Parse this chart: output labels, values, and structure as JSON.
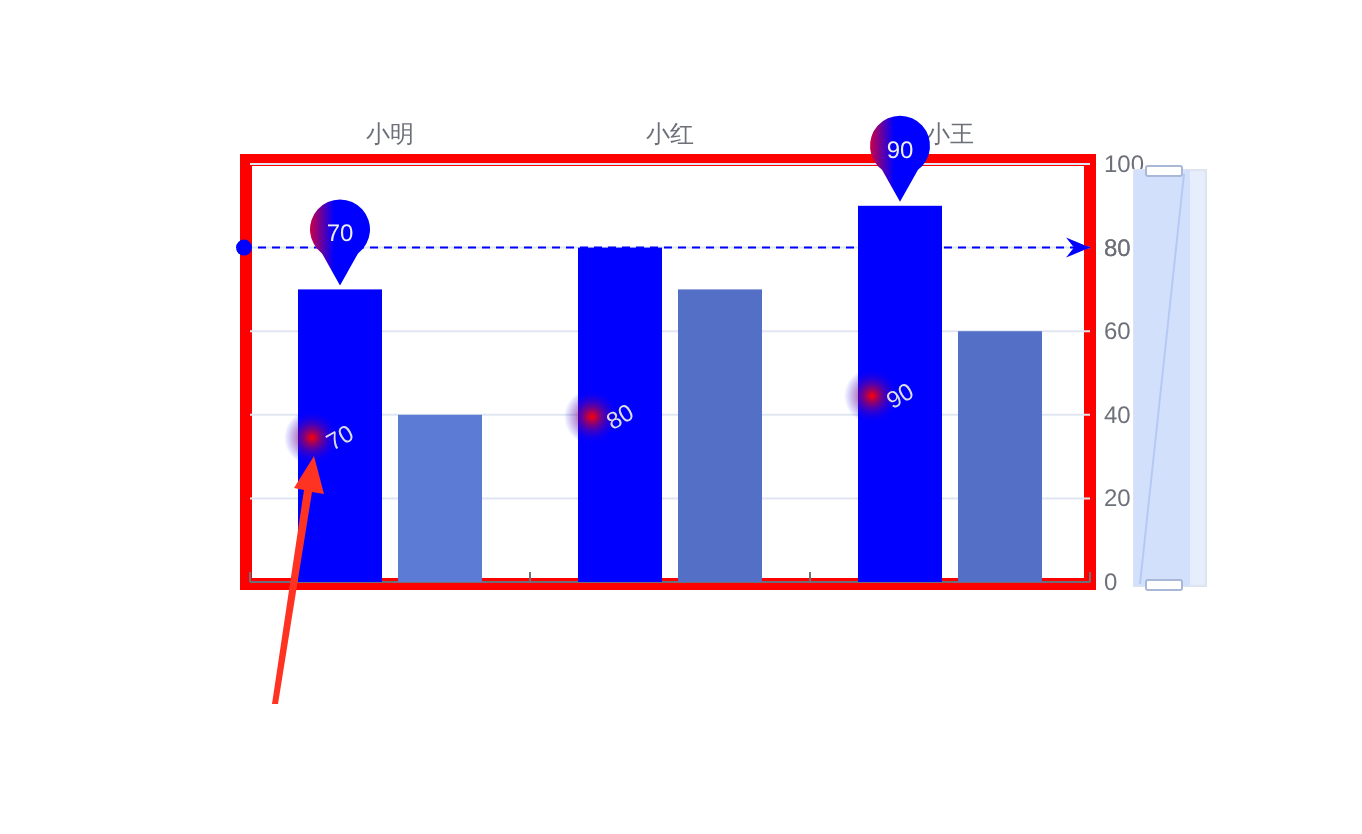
{
  "chart_data": {
    "type": "bar",
    "categories": [
      "小明",
      "小红",
      "小王"
    ],
    "series": [
      {
        "color": "#0000ff",
        "values": [
          70,
          80,
          90
        ],
        "value_labels": [
          "70",
          "80",
          "90"
        ]
      },
      {
        "colors": [
          "#5b7bd5",
          "#5470c6",
          "#5470c6"
        ],
        "values": [
          40,
          70,
          60
        ]
      }
    ],
    "ylim": [
      0,
      100
    ],
    "yticks": [
      0,
      20,
      40,
      60,
      80,
      100
    ],
    "grid": "y",
    "ref_lines": [
      {
        "axis": "y",
        "value": 80,
        "label": "80",
        "color": "#0000ff",
        "line_style": "dashed"
      }
    ],
    "annotations": [
      {
        "text": "70",
        "x": "小明",
        "y": 70
      },
      {
        "text": "90",
        "x": "小王",
        "y": 90
      }
    ]
  }
}
